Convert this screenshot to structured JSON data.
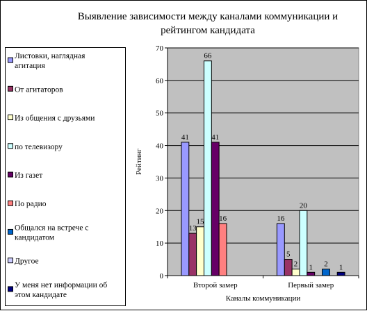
{
  "chart_data": {
    "type": "bar",
    "title_lines": [
      "Выявление зависимости между каналами коммуникации и",
      "рейтингом кандидата"
    ],
    "xlabel": "Каналы коммуникации",
    "ylabel": "Рейтинг",
    "ylim": [
      0,
      70
    ],
    "yticks": [
      0,
      10,
      20,
      30,
      40,
      50,
      60,
      70
    ],
    "categories": [
      "Второй замер",
      "Первый замер"
    ],
    "legend_position": "left",
    "plot_background": "#c0c0c0",
    "series": [
      {
        "name": "Листовки, наглядная агитация",
        "legend_lines": [
          "Листовки, наглядная",
          "агитация"
        ],
        "color": "#9999ff",
        "values": [
          41,
          16
        ]
      },
      {
        "name": "От агитаторов",
        "legend_lines": [
          "От агитаторов"
        ],
        "color": "#993366",
        "values": [
          13,
          5
        ]
      },
      {
        "name": "Из общения с друзьями",
        "legend_lines": [
          "Из общения с друзьями"
        ],
        "color": "#ffffcc",
        "values": [
          15,
          2
        ]
      },
      {
        "name": "по телевизору",
        "legend_lines": [
          "по телевизору"
        ],
        "color": "#ccffff",
        "values": [
          66,
          20
        ]
      },
      {
        "name": "Из газет",
        "legend_lines": [
          "Из газет"
        ],
        "color": "#660066",
        "values": [
          41,
          1
        ]
      },
      {
        "name": "По радио",
        "legend_lines": [
          "По радио"
        ],
        "color": "#ff8080",
        "values": [
          16,
          0
        ]
      },
      {
        "name": "Общался на встрече с кандидатом",
        "legend_lines": [
          "Общался на встрече с",
          "кандидатом"
        ],
        "color": "#0066cc",
        "values": [
          0,
          2
        ]
      },
      {
        "name": "Другое",
        "legend_lines": [
          "Другое"
        ],
        "color": "#ccccff",
        "values": [
          0,
          0
        ]
      },
      {
        "name": "У меня нет информации об этом кандидате",
        "legend_lines": [
          "У меня нет информации об",
          "этом кандидате"
        ],
        "color": "#000080",
        "values": [
          0,
          1
        ]
      }
    ],
    "data_labels": [
      [
        "41",
        "16"
      ],
      [
        "13",
        "5"
      ],
      [
        "15",
        "2"
      ],
      [
        "66",
        "20"
      ],
      [
        "41",
        "1"
      ],
      [
        "16",
        ""
      ],
      [
        "",
        "2"
      ],
      [
        "",
        ""
      ],
      [
        "",
        "1"
      ]
    ]
  }
}
